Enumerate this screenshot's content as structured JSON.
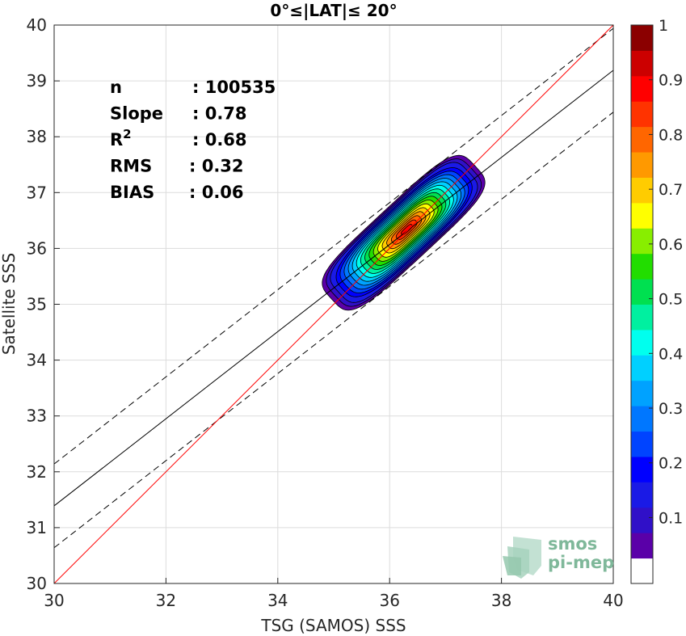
{
  "chart_data": {
    "type": "contour",
    "title": "0°≤|LAT|≤ 20°",
    "xlabel": "TSG (SAMOS) SSS",
    "ylabel": "Satellite SSS",
    "xlim": [
      30,
      40
    ],
    "ylim": [
      30,
      40
    ],
    "xticks": [
      30,
      32,
      34,
      36,
      38,
      40
    ],
    "yticks": [
      30,
      31,
      32,
      33,
      34,
      35,
      36,
      37,
      38,
      39,
      40
    ],
    "grid": true,
    "stats": [
      {
        "label": "n",
        "value": ": 100535"
      },
      {
        "label": "Slope",
        "value": ": 0.78"
      },
      {
        "label": "R",
        "sup": "2",
        "value": ": 0.68"
      },
      {
        "label": "RMS",
        "value": ": 0.32"
      },
      {
        "label": "BIAS",
        "value": ": 0.06"
      }
    ],
    "lines": {
      "identity": {
        "slope": 1.0,
        "intercept": 0.0,
        "color": "#ff0000"
      },
      "regression": {
        "slope": 0.78,
        "intercept": 7.99,
        "color": "#000000"
      },
      "envelope_offset": 0.75
    },
    "density": {
      "center": [
        36.25,
        36.28
      ],
      "levels": [
        0.05,
        0.1,
        0.15,
        0.2,
        0.25,
        0.3,
        0.35,
        0.4,
        0.45,
        0.5,
        0.55,
        0.6,
        0.65,
        0.7,
        0.75,
        0.8,
        0.85,
        0.9,
        0.95
      ]
    },
    "colorbar": {
      "range": [
        0,
        1
      ],
      "ticks": [
        "0.1",
        "0.2",
        "0.3",
        "0.4",
        "0.5",
        "0.6",
        "0.7",
        "0.8",
        "0.9",
        "1"
      ],
      "colors": [
        "#ffffff",
        "#5a00a8",
        "#3010c8",
        "#1a1ae6",
        "#0000ff",
        "#0044ff",
        "#0077ff",
        "#00a2ff",
        "#00d0ff",
        "#00ffee",
        "#00f0a0",
        "#00e050",
        "#22dd00",
        "#88ee00",
        "#ffff00",
        "#ffcc00",
        "#ff9900",
        "#ff6600",
        "#ff3300",
        "#ff0000",
        "#cc0000",
        "#8b0000"
      ]
    },
    "logo": {
      "line1": "smos",
      "line2": "pi-mep"
    }
  }
}
